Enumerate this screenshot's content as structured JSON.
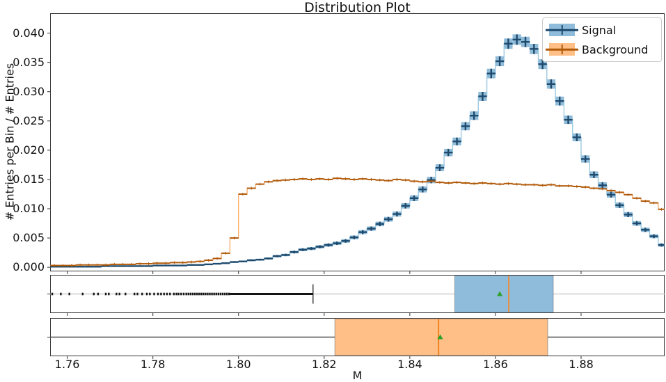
{
  "title": "Distribution Plot",
  "xlabel": "M",
  "ylabel": "# Entries per Bin / # Entries",
  "legend": {
    "items": [
      {
        "label": "Signal"
      },
      {
        "label": "Background"
      }
    ]
  },
  "colors": {
    "signal": "#1f77b4",
    "signal_step_line": "#9ec9e2",
    "signal_error_box": "#1f77b4",
    "signal_marker": "#1e4a6d",
    "background": "#ff7f0e",
    "background_step_line": "#fdae6b",
    "background_marker": "#b05909",
    "box_signal_fill": "#90bcdc",
    "box_background_fill": "#ffbf86",
    "median_signal": "#e59044",
    "median_background": "#ee8322",
    "mean_marker": "#2ca02c",
    "whisker_signal": "#c2c2c2",
    "whisker_background": "#4d4d4d",
    "outlier": "#141414",
    "spine": "#333333"
  },
  "axes": {
    "xlim": [
      1.756,
      1.8995
    ],
    "ylim": [
      -0.0007,
      0.0434
    ],
    "xticks": {
      "values": [
        1.76,
        1.78,
        1.8,
        1.82,
        1.84,
        1.86,
        1.88
      ],
      "labels": [
        "1.76",
        "1.78",
        "1.80",
        "1.82",
        "1.84",
        "1.86",
        "1.88"
      ]
    },
    "yticks": {
      "values": [
        0.0,
        0.005,
        0.01,
        0.015,
        0.02,
        0.025,
        0.03,
        0.035,
        0.04
      ],
      "labels": [
        "0.000",
        "0.005",
        "0.010",
        "0.015",
        "0.020",
        "0.025",
        "0.030",
        "0.035",
        "0.040"
      ]
    }
  },
  "chart_data": {
    "type": "histogram",
    "bin_start": 1.756,
    "bin_width": 0.002,
    "yerr_model": {
      "signal_scale": 0.0045,
      "background_scale": 0.0012
    },
    "series": [
      {
        "name": "Signal",
        "values": [
          0.0001,
          0.0001,
          0.0001,
          0.0001,
          0.0001,
          0.0001,
          0.0002,
          0.0002,
          0.0002,
          0.0002,
          0.0002,
          0.0002,
          0.0003,
          0.0003,
          0.0003,
          0.0003,
          0.0004,
          0.0004,
          0.0005,
          0.0006,
          0.0007,
          0.0009,
          0.001,
          0.0012,
          0.0013,
          0.0015,
          0.0019,
          0.0021,
          0.0026,
          0.003,
          0.0032,
          0.0035,
          0.0038,
          0.0041,
          0.0045,
          0.0051,
          0.006,
          0.0066,
          0.0074,
          0.0082,
          0.0091,
          0.0105,
          0.0118,
          0.0133,
          0.0149,
          0.017,
          0.0196,
          0.0215,
          0.0241,
          0.0259,
          0.0292,
          0.0331,
          0.0352,
          0.0382,
          0.0389,
          0.0385,
          0.0373,
          0.0347,
          0.0313,
          0.0284,
          0.0252,
          0.0222,
          0.0185,
          0.0158,
          0.014,
          0.0124,
          0.0106,
          0.009,
          0.0075,
          0.0064,
          0.0053,
          0.0038
        ]
      },
      {
        "name": "Background",
        "values": [
          0.0003,
          0.0003,
          0.0003,
          0.0004,
          0.0004,
          0.0004,
          0.0004,
          0.0005,
          0.0005,
          0.0005,
          0.0006,
          0.0006,
          0.0007,
          0.0007,
          0.0008,
          0.0008,
          0.0009,
          0.001,
          0.0012,
          0.0015,
          0.0024,
          0.005,
          0.0125,
          0.0135,
          0.0142,
          0.0146,
          0.0148,
          0.0149,
          0.015,
          0.0151,
          0.015,
          0.0151,
          0.015,
          0.0152,
          0.0151,
          0.015,
          0.0151,
          0.015,
          0.0149,
          0.0148,
          0.015,
          0.0149,
          0.0147,
          0.0146,
          0.0147,
          0.0145,
          0.0144,
          0.0145,
          0.0144,
          0.0143,
          0.0144,
          0.0143,
          0.0142,
          0.0143,
          0.0142,
          0.0141,
          0.0141,
          0.014,
          0.0141,
          0.0139,
          0.0139,
          0.0138,
          0.0137,
          0.0135,
          0.0134,
          0.0131,
          0.0128,
          0.0124,
          0.0118,
          0.0113,
          0.011,
          0.0099
        ]
      }
    ],
    "boxplots": [
      {
        "name": "Signal",
        "q1": 1.8505,
        "median": 1.8631,
        "q3": 1.8735,
        "mean": 1.861,
        "whisker_low": 1.8174,
        "whisker_high": 1.8995,
        "whisker_low_capped": true,
        "whisker_high_capped": false,
        "outlier_dense_range": [
          1.798,
          1.8174
        ],
        "outliers": [
          1.7565,
          1.7585,
          1.7605,
          1.7636,
          1.7662,
          1.7672,
          1.769,
          1.7697,
          1.7715,
          1.7722,
          1.7736,
          1.7757,
          1.7764,
          1.7775,
          1.7786,
          1.7793,
          1.7803,
          1.7812,
          1.7819,
          1.7826,
          1.7833,
          1.784,
          1.7849,
          1.7855,
          1.786,
          1.7866,
          1.7872,
          1.7878,
          1.7883,
          1.7888,
          1.7893,
          1.7898,
          1.7903,
          1.7908,
          1.7913,
          1.7918,
          1.7923,
          1.7928,
          1.7933,
          1.7938,
          1.7943,
          1.7948,
          1.7953,
          1.7958,
          1.7963,
          1.7968,
          1.7973,
          1.7978
        ]
      },
      {
        "name": "Background",
        "q1": 1.8225,
        "median": 1.8467,
        "q3": 1.8722,
        "mean": 1.8471,
        "whisker_low": 1.756,
        "whisker_high": 1.8995,
        "whisker_low_capped": false,
        "whisker_high_capped": false,
        "outlier_dense_range": null,
        "outliers": []
      }
    ]
  }
}
